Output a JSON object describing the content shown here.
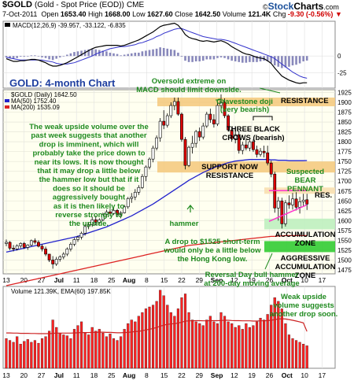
{
  "header": {
    "symbol": "$GOLD",
    "name": "(Gold - Spot Price (EOD))",
    "exchange": "CME",
    "date": "7-Oct-2011",
    "open_label": "Open",
    "open": "1653.40",
    "high_label": "High",
    "high": "1668.00",
    "low_label": "Low",
    "low": "1627.60",
    "close_label": "Close",
    "close": "1642.50",
    "volume_label": "Volume",
    "volume": "121.4K",
    "chg_label": "Chg",
    "chg": "-9.30 (-0.56%)",
    "chg_arrow": "▼",
    "logo_pre": "©",
    "logo_a": "Stock",
    "logo_b": "Charts",
    "logo_c": ".com"
  },
  "macd": {
    "legend_name": "MACD",
    "legend_params": "(12,26,9)",
    "legend_values": "-39.957, -33.122, -6.835",
    "ticks": [
      "0",
      "-25"
    ],
    "line_color": "#000000",
    "signal_color": "#3333cc",
    "hist_color": "#8888bb"
  },
  "price": {
    "legend_main": "$GOLD (Daily) 1642.50",
    "legend_ma50": "MA(50) 1752.40",
    "legend_ma200": "MA(200) 1535.09",
    "ticks": [
      "1925",
      "1900",
      "1875",
      "1850",
      "1825",
      "1800",
      "1775",
      "1750",
      "1725",
      "1700",
      "1675",
      "1650",
      "1625",
      "1600",
      "1575",
      "1550",
      "1525",
      "1500",
      "1475"
    ],
    "up_color": "#ffffff",
    "down_color": "#dd0000",
    "ma50_color": "#2222cc",
    "ma200_color": "#dd2222",
    "bg_color": "#fffff0",
    "band_color": "#f5c87a",
    "green_color": "#33cc33"
  },
  "volume": {
    "legend": "Volume 121.39K, EMA(60) 197.85K",
    "bar_color": "#ff2222",
    "ema_color": "#cc2222"
  },
  "xaxis": {
    "labels": [
      "13",
      "20",
      "27",
      "Jul",
      "11",
      "18",
      "25",
      "Aug",
      "8",
      "15",
      "22",
      "29",
      "Sep",
      "12",
      "19",
      "26",
      "Oct",
      "10",
      "17"
    ]
  },
  "annotations": {
    "chart_title": "GOLD: 4-month Chart",
    "oversold": "Oversold extreme on\nMACD should limit downside.",
    "gravestone": "Gravestone doji\n(very bearish)",
    "resistance_top": "RESISTANCE",
    "three_crows": "THREE BLACK\nCROWS (bearish)",
    "body_text": "The weak upside volume over the\npast week suggests that another\ndrop is imminent, which will\nprobably take the price down to\nnear its lows. It is now thought\nthat it may drop a little below\nthe hammer low but that if it\ndoes so it should be\naggressively bought\nas it is then likely to\nreverse strongly to\nthe upside.",
    "support_now": "SUPPORT NOW\nRESISTANCE",
    "suspected": "Suspected\nBEAR\nPENNANT",
    "res": "RES.",
    "hammer": "hammer",
    "accumulation": "ACCUMULATION\nZONE",
    "aggressive": "AGGRESSIVE\nACCUMULATION\nZONE",
    "drop_text": "A drop to $1525 short-term\nwould only be a little below\nthe Hong Kong low.",
    "reversal": "Reversal Day bull hammer\nat 200-day moving average",
    "weak_upside": "Weak upside\nvolume suggests\nanother drop soon."
  },
  "chart_data": {
    "type": "candlestick",
    "title": "GOLD: 4-month Chart",
    "period": "2011-06-09 to 2011-10-07",
    "ylim": [
      1465,
      1932
    ],
    "ohlc": [
      [
        1542,
        1552,
        1535,
        1545
      ],
      [
        1545,
        1548,
        1525,
        1530
      ],
      [
        1530,
        1538,
        1522,
        1528
      ],
      [
        1528,
        1540,
        1524,
        1536
      ],
      [
        1536,
        1545,
        1530,
        1542
      ],
      [
        1542,
        1546,
        1528,
        1532
      ],
      [
        1532,
        1540,
        1526,
        1538
      ],
      [
        1538,
        1552,
        1535,
        1549
      ],
      [
        1549,
        1555,
        1540,
        1545
      ],
      [
        1545,
        1550,
        1532,
        1535
      ],
      [
        1535,
        1540,
        1522,
        1528
      ],
      [
        1528,
        1534,
        1510,
        1515
      ],
      [
        1515,
        1512,
        1495,
        1500
      ],
      [
        1500,
        1510,
        1478,
        1490
      ],
      [
        1490,
        1508,
        1485,
        1502
      ],
      [
        1502,
        1512,
        1496,
        1508
      ],
      [
        1508,
        1520,
        1502,
        1515
      ],
      [
        1515,
        1532,
        1510,
        1528
      ],
      [
        1528,
        1545,
        1522,
        1540
      ],
      [
        1540,
        1556,
        1535,
        1552
      ],
      [
        1552,
        1562,
        1546,
        1558
      ],
      [
        1558,
        1572,
        1552,
        1568
      ],
      [
        1568,
        1590,
        1562,
        1585
      ],
      [
        1585,
        1596,
        1578,
        1590
      ],
      [
        1590,
        1610,
        1584,
        1602
      ],
      [
        1602,
        1612,
        1588,
        1596
      ],
      [
        1596,
        1606,
        1590,
        1602
      ],
      [
        1602,
        1620,
        1598,
        1616
      ],
      [
        1616,
        1628,
        1608,
        1622
      ],
      [
        1622,
        1630,
        1612,
        1618
      ],
      [
        1618,
        1632,
        1614,
        1626
      ],
      [
        1626,
        1630,
        1610,
        1616
      ],
      [
        1616,
        1624,
        1606,
        1620
      ],
      [
        1620,
        1640,
        1618,
        1635
      ],
      [
        1635,
        1660,
        1630,
        1656
      ],
      [
        1656,
        1670,
        1645,
        1660
      ],
      [
        1660,
        1680,
        1652,
        1672
      ],
      [
        1672,
        1690,
        1665,
        1684
      ],
      [
        1684,
        1718,
        1680,
        1712
      ],
      [
        1712,
        1740,
        1700,
        1736
      ],
      [
        1736,
        1760,
        1730,
        1756
      ],
      [
        1756,
        1790,
        1748,
        1784
      ],
      [
        1784,
        1816,
        1778,
        1810
      ],
      [
        1810,
        1860,
        1800,
        1852
      ],
      [
        1852,
        1880,
        1832,
        1842
      ],
      [
        1842,
        1872,
        1836,
        1866
      ],
      [
        1866,
        1900,
        1860,
        1892
      ],
      [
        1892,
        1912,
        1880,
        1902
      ],
      [
        1902,
        1912,
        1866,
        1870
      ],
      [
        1870,
        1874,
        1800,
        1806
      ],
      [
        1806,
        1812,
        1730,
        1740
      ],
      [
        1740,
        1790,
        1736,
        1786
      ],
      [
        1786,
        1815,
        1770,
        1796
      ],
      [
        1796,
        1830,
        1785,
        1826
      ],
      [
        1826,
        1836,
        1802,
        1812
      ],
      [
        1812,
        1848,
        1806,
        1840
      ],
      [
        1840,
        1876,
        1835,
        1870
      ],
      [
        1870,
        1884,
        1848,
        1856
      ],
      [
        1856,
        1870,
        1836,
        1845
      ],
      [
        1845,
        1900,
        1840,
        1892
      ],
      [
        1892,
        1920,
        1880,
        1900
      ],
      [
        1900,
        1910,
        1860,
        1866
      ],
      [
        1866,
        1870,
        1826,
        1830
      ],
      [
        1830,
        1838,
        1800,
        1808
      ],
      [
        1808,
        1830,
        1796,
        1818
      ],
      [
        1818,
        1828,
        1770,
        1778
      ],
      [
        1778,
        1800,
        1768,
        1792
      ],
      [
        1792,
        1808,
        1778,
        1784
      ],
      [
        1784,
        1804,
        1776,
        1800
      ],
      [
        1800,
        1806,
        1774,
        1780
      ],
      [
        1780,
        1790,
        1760,
        1768
      ],
      [
        1768,
        1784,
        1762,
        1776
      ],
      [
        1776,
        1790,
        1760,
        1772
      ],
      [
        1772,
        1790,
        1740,
        1746
      ],
      [
        1746,
        1752,
        1710,
        1718
      ],
      [
        1718,
        1724,
        1620,
        1632
      ],
      [
        1632,
        1660,
        1600,
        1650
      ],
      [
        1650,
        1658,
        1580,
        1592
      ],
      [
        1592,
        1652,
        1585,
        1645
      ],
      [
        1645,
        1664,
        1630,
        1640
      ],
      [
        1640,
        1670,
        1628,
        1655
      ],
      [
        1655,
        1672,
        1626,
        1634
      ],
      [
        1634,
        1660,
        1618,
        1648
      ],
      [
        1648,
        1668,
        1636,
        1652
      ],
      [
        1653,
        1668,
        1627,
        1642
      ]
    ],
    "ma50": [
      1520,
      1522,
      1524,
      1526,
      1528,
      1530,
      1532,
      1534,
      1536,
      1538,
      1540,
      1542,
      1544,
      1546,
      1548,
      1550,
      1552,
      1554,
      1556,
      1558,
      1560,
      1563,
      1566,
      1569,
      1572,
      1575,
      1578,
      1581,
      1584,
      1588,
      1592,
      1596,
      1600,
      1604,
      1608,
      1612,
      1617,
      1622,
      1627,
      1632,
      1637,
      1642,
      1648,
      1654,
      1660,
      1666,
      1672,
      1678,
      1684,
      1690,
      1696,
      1702,
      1707,
      1712,
      1717,
      1722,
      1726,
      1730,
      1734,
      1738,
      1741,
      1744,
      1747,
      1749,
      1751,
      1752,
      1753,
      1754,
      1755,
      1755,
      1755,
      1755,
      1755,
      1755,
      1754,
      1754,
      1753,
      1753,
      1753,
      1752,
      1752,
      1752,
      1752,
      1752,
      1752.4
    ],
    "ma200": [
      1435,
      1437,
      1439,
      1441,
      1443,
      1445,
      1447,
      1449,
      1451,
      1453,
      1455,
      1457,
      1459,
      1461,
      1463,
      1465,
      1467,
      1469,
      1471,
      1473,
      1475,
      1477,
      1479,
      1481,
      1483,
      1485,
      1487,
      1489,
      1491,
      1493,
      1495,
      1497,
      1499,
      1501,
      1503,
      1505,
      1507,
      1509,
      1511,
      1513,
      1515,
      1517,
      1519,
      1521,
      1523,
      1525,
      1527,
      1529,
      1531,
      1533,
      1535,
      1537,
      1538,
      1539,
      1540,
      1541,
      1542,
      1543,
      1544,
      1545,
      1546,
      1547,
      1548,
      1549,
      1550,
      1551,
      1552,
      1553,
      1554,
      1555,
      1556,
      1557,
      1558,
      1559,
      1560,
      1560,
      1561,
      1561,
      1562,
      1562,
      1562,
      1562,
      1562,
      1562,
      1562
    ],
    "macd": [
      -4,
      -6,
      -8,
      -8,
      -7,
      -7,
      -6,
      -5,
      -5,
      -6,
      -8,
      -10,
      -13,
      -15,
      -15,
      -14,
      -12,
      -10,
      -7,
      -4,
      -1,
      2,
      5,
      8,
      11,
      13,
      14,
      15,
      16,
      16,
      16,
      16,
      15,
      16,
      18,
      20,
      22,
      24,
      27,
      30,
      33,
      36,
      40,
      44,
      46,
      47,
      48,
      49,
      46,
      40,
      32,
      28,
      26,
      25,
      23,
      22,
      23,
      22,
      21,
      22,
      23,
      21,
      18,
      14,
      11,
      8,
      5,
      3,
      2,
      0,
      -2,
      -3,
      -4,
      -7,
      -11,
      -18,
      -24,
      -30,
      -33,
      -36,
      -38,
      -40,
      -41,
      -40,
      -39.957
    ],
    "macd_signal": [
      -2,
      -3,
      -4,
      -5,
      -6,
      -6,
      -6,
      -6,
      -6,
      -6,
      -6,
      -7,
      -8,
      -9,
      -11,
      -12,
      -12,
      -12,
      -11,
      -10,
      -8,
      -6,
      -4,
      -2,
      0,
      3,
      5,
      7,
      9,
      11,
      12,
      13,
      14,
      14,
      15,
      16,
      17,
      19,
      20,
      22,
      24,
      26,
      29,
      31,
      34,
      36,
      38,
      40,
      41,
      41,
      39,
      37,
      35,
      33,
      31,
      29,
      28,
      27,
      26,
      25,
      25,
      24,
      23,
      21,
      19,
      17,
      15,
      13,
      11,
      9,
      7,
      5,
      3,
      1,
      -1,
      -4,
      -8,
      -12,
      -16,
      -20,
      -24,
      -27,
      -30,
      -32,
      -33.122
    ],
    "volume": [
      160,
      150,
      140,
      170,
      130,
      145,
      155,
      140,
      150,
      135,
      160,
      170,
      200,
      260,
      220,
      190,
      180,
      175,
      160,
      210,
      230,
      250,
      190,
      180,
      220,
      200,
      210,
      190,
      170,
      185,
      160,
      150,
      170,
      210,
      240,
      260,
      250,
      280,
      300,
      320,
      330,
      340,
      360,
      420,
      390,
      340,
      300,
      280,
      320,
      380,
      400,
      300,
      260,
      250,
      240,
      230,
      260,
      280,
      250,
      240,
      300,
      280,
      250,
      240,
      220,
      230,
      210,
      240,
      220,
      230,
      250,
      270,
      260,
      290,
      340,
      380,
      360,
      320,
      240,
      180,
      160,
      150,
      140,
      130,
      121
    ],
    "ema60": [
      190,
      190,
      189,
      189,
      188,
      188,
      188,
      187,
      187,
      186,
      186,
      186,
      186,
      188,
      189,
      189,
      189,
      189,
      189,
      190,
      191,
      192,
      192,
      192,
      193,
      193,
      194,
      194,
      193,
      193,
      192,
      191,
      191,
      192,
      193,
      195,
      197,
      199,
      202,
      206,
      210,
      214,
      219,
      226,
      232,
      236,
      238,
      240,
      243,
      248,
      253,
      255,
      255,
      256,
      256,
      255,
      255,
      256,
      256,
      256,
      257,
      258,
      258,
      257,
      256,
      256,
      255,
      255,
      255,
      254,
      254,
      255,
      255,
      256,
      258,
      262,
      265,
      266,
      265,
      262,
      258,
      254,
      249,
      244,
      197.85
    ],
    "bands": {
      "resistance": [
        1890,
        1912
      ],
      "support_now_resistance": [
        1722,
        1750
      ],
      "res": [
        1668,
        1684
      ],
      "accumulation_zone": [
        1578,
        1605
      ],
      "aggressive_accumulation_zone": [
        1520,
        1548
      ]
    }
  }
}
